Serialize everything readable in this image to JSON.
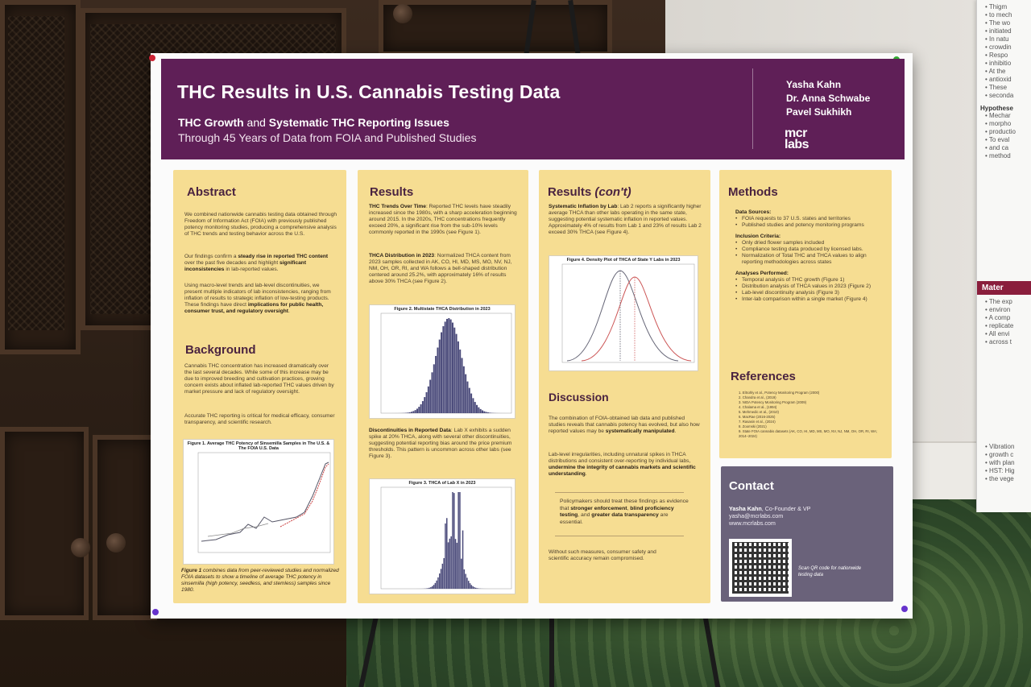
{
  "poster": {
    "title": "THC Results in U.S. Cannabis Testing Data",
    "subtitle_bold_1": "THC Growth",
    "subtitle_mid": " and ",
    "subtitle_bold_2": "Systematic THC Reporting Issues",
    "subtitle_line2": "Through 45 Years of Data from FOIA and Published Studies",
    "authors": [
      "Yasha Kahn",
      "Dr. Anna Schwabe",
      "Pavel Sukhikh"
    ],
    "logo_line1": "mcr",
    "logo_line2": "labs"
  },
  "abstract": {
    "heading": "Abstract",
    "p1": "We combined nationwide cannabis testing data obtained through Freedom of Information Act (FOIA) with previously published potency monitoring studies, producing a comprehensive analysis of THC trends and testing behavior across the U.S.",
    "p2_a": "Our findings confirm a ",
    "p2_b": "steady rise in reported THC content",
    "p2_c": " over the past five decades and highlight ",
    "p2_d": "significant inconsistencies",
    "p2_e": " in lab-reported values.",
    "p3_a": "Using macro-level trends and lab-level discontinuities, we present multiple indicators of lab inconsistencies, ranging from inflation of results to strategic inflation of low-testing products. These findings have direct ",
    "p3_b": "implications for public health, consumer trust, and regulatory oversight",
    "p3_c": "."
  },
  "background": {
    "heading": "Background",
    "p1": "Cannabis THC concentration has increased dramatically over the last several decades. While some of this increase may be due to improved breeding and cultivation practices, growing concern exists about inflated lab-reported THC values driven by market pressure and lack of regulatory oversight.",
    "p2": "Accurate THC reporting is critical for medical efficacy, consumer transparency, and scientific research.",
    "fig1_title": "Figure 1. Average THC Potency of Sinsemilla Samples in The U.S. & The FOIA U.S. Data",
    "fig1_cap_b": "Figure 1",
    "fig1_cap": " combines data from peer-reviewed studies and normalized FOIA datasets to show a timeline of average THC potency in sinsemilla (high potency, seedless, and stemless) samples since 1980."
  },
  "results": {
    "heading": "Results",
    "p1_b": "THC Trends Over Time",
    "p1": ": Reported THC levels have steadily increased since the 1980s, with a sharp acceleration beginning around 2015. In the 2020s, THC concentrations frequently exceed 20%, a significant rise from the sub-10% levels commonly reported in the 1990s (see Figure 1).",
    "p2_b": "THCA Distribution in 2023",
    "p2": ": Normalized THCA content from 2023 samples collected in AK, CO, HI, MD, MS, MO, NV, NJ, NM, OH, OR, RI, and WA follows a bell-shaped distribution centered around 25.2%, with approximately 16% of results above 30% THCA (see Figure 2).",
    "fig2_title": "Figure 2. Multistate THCA Distribution in 2023",
    "p3_b": "Discontinuities in Reported Data",
    "p3": ": Lab X exhibits a sudden spike at 20% THCA, along with several other discontinuities, suggesting potential reporting bias around the price premium thresholds. This pattern is uncommon across other labs (see Figure 3).",
    "fig3_title": "Figure 3. THCA of Lab X in 2023"
  },
  "results_cont": {
    "heading": "Results",
    "heading_cont": "(con't)",
    "p1_b": "Systematic Inflation by Lab",
    "p1": ": Lab 2 reports a significantly higher average THCA than other labs operating in the same state, suggesting potential systematic inflation in reported values. Approximately 4% of results from Lab 1 and 23% of results Lab 2 exceed 30% THCA (see Figure 4).",
    "fig4_title": "Figure 4. Density Plot of THCA of State Y Labs in 2023",
    "disc_heading": "Discussion",
    "d1_a": "The combination of FOIA-obtained lab data and published studies reveals that cannabis potency has evolved, but also how reported values may be ",
    "d1_b": "systematically manipulated",
    "d1_c": ".",
    "d2_a": "Lab-level irregularities, including unnatural spikes in THCA distributions and consistent over-reporting by individual labs, ",
    "d2_b": "undermine the integrity of cannabis markets and scientific understanding",
    "d2_c": ".",
    "call_a": "Policymakers should treat these findings as evidence that ",
    "call_b": "stronger enforcement",
    "call_c": ", ",
    "call_d": "blind proficiency testing",
    "call_e": ", and ",
    "call_f": "greater data transparency",
    "call_g": " are essential.",
    "d3": "Without such measures, consumer safety and scientific accuracy remain compromised."
  },
  "methods": {
    "heading": "Methods",
    "ds_label": "Data Sources:",
    "ds": [
      "FOIA requests to 37 U.S. states and territories",
      "Published studies and potency monitoring programs"
    ],
    "ic_label": "Inclusion Criteria:",
    "ic": [
      "Only dried flower samples included",
      "Compliance testing data produced by licensed labs.",
      "Normalization of Total THC and THCA values to align reporting methodologies across states"
    ],
    "ap_label": "Analyses Performed:",
    "ap": [
      "Temporal analysis of THC growth (Figure 1)",
      "Distribution analysis of THCA values in 2023 (Figure 2)",
      "Lab-level discontinuity analysis (Figure 3)",
      "Inter-lab comparison within a single market (Figure 4)"
    ]
  },
  "references": {
    "heading": "References",
    "items": [
      "1. ElSohly et al., Potency Monitoring Program (2000)",
      "2. Chandra et al., (2019)",
      "3. NIDA Potency Monitoring Program (2009)",
      "4. Chalama et al., (1994)",
      "5. Mehmedic et al., (2010)",
      "6. MacRae (2016-2025)",
      "7. Rasasin et al., (2024)",
      "8. Zoomski (2021)",
      "9. State FOIA cannabis datasets (AK, CO, HI, MD, MS, MO, NV, NJ, NM, OH, OR, RI, WA; 2014–2024)"
    ]
  },
  "contact": {
    "heading": "Contact",
    "name": "Yasha Kahn",
    "role": ", Co-Founder & VP",
    "email": "yasha@mcrlabs.com",
    "web": "www.mcrlabs.com",
    "qr_caption": "Scan QR code for nationwide testing data"
  },
  "side_poster": {
    "lines": [
      "Thigm",
      "to mech",
      "The wo",
      "initiated",
      "In natu",
      "crowdin",
      "Respo",
      "inhibitio",
      "At the",
      "antioxid",
      "These",
      "seconda"
    ],
    "heading": "Hypothese",
    "lines2": [
      "Mechar",
      "morpho",
      "productio",
      "To eval",
      "and ca",
      "method"
    ],
    "banner": "Mater",
    "lines3": [
      "The exp",
      "environ",
      "A comp",
      "replicate",
      "All envi",
      "across t"
    ],
    "lines4": [
      "Vibration",
      "growth c",
      "with plan",
      "HST: Hig",
      "the vege"
    ]
  },
  "colors": {
    "header": "#5f1f57",
    "panel": "#f6dd92",
    "contact": "#6a627a",
    "bars": "#4a4a7a"
  }
}
